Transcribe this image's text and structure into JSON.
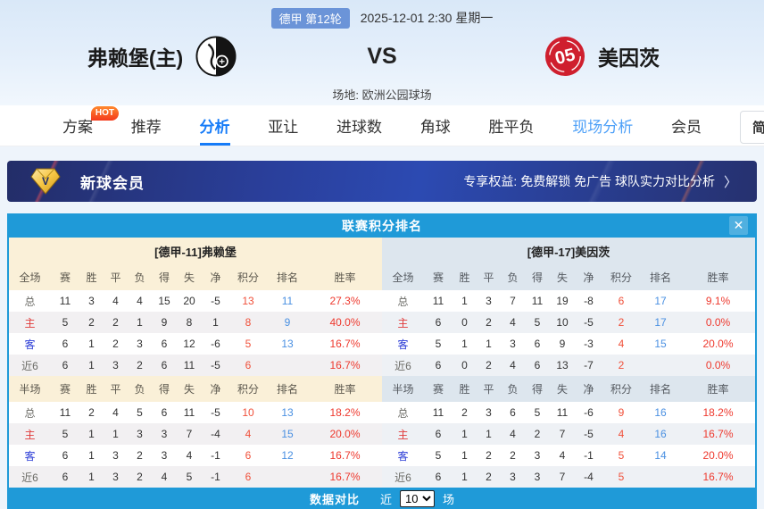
{
  "header": {
    "league_badge": "德甲 第12轮",
    "datetime": "2025-12-01 2:30 星期一",
    "home_team": "弗赖堡(主)",
    "vs": "VS",
    "away_team": "美因茨",
    "away_logo_text": "05",
    "venue": "场地: 欧洲公园球场"
  },
  "nav": {
    "tabs": [
      {
        "label": "方案",
        "badge": "HOT"
      },
      {
        "label": "推荐"
      },
      {
        "label": "分析",
        "active": true
      },
      {
        "label": "亚让"
      },
      {
        "label": "进球数"
      },
      {
        "label": "角球"
      },
      {
        "label": "胜平负"
      },
      {
        "label": "现场分析",
        "highlight": true
      },
      {
        "label": "会员"
      }
    ],
    "lang_button": "简"
  },
  "banner": {
    "icon_letter": "V",
    "title": "新球会员",
    "benefits": "专享权益: 免费解锁 免广告 球队实力对比分析",
    "arrow": "〉"
  },
  "standings": {
    "title": "联赛积分排名",
    "close_icon": "✕",
    "columns_full": [
      "全场",
      "赛",
      "胜",
      "平",
      "负",
      "得",
      "失",
      "净",
      "积分",
      "排名",
      "胜率"
    ],
    "columns_half": [
      "半场",
      "赛",
      "胜",
      "平",
      "负",
      "得",
      "失",
      "净",
      "积分",
      "排名",
      "胜率"
    ],
    "teams": [
      {
        "name": "[德甲-11]弗赖堡",
        "full": [
          {
            "label": "总",
            "cells": [
              "11",
              "3",
              "4",
              "4",
              "15",
              "20",
              "-5",
              "13",
              "11",
              "27.3%"
            ]
          },
          {
            "label": "主",
            "cells": [
              "5",
              "2",
              "2",
              "1",
              "9",
              "8",
              "1",
              "8",
              "9",
              "40.0%"
            ]
          },
          {
            "label": "客",
            "cells": [
              "6",
              "1",
              "2",
              "3",
              "6",
              "12",
              "-6",
              "5",
              "13",
              "16.7%"
            ]
          },
          {
            "label": "近6",
            "cells": [
              "6",
              "1",
              "3",
              "2",
              "6",
              "11",
              "-5",
              "6",
              "",
              "16.7%"
            ]
          }
        ],
        "half": [
          {
            "label": "总",
            "cells": [
              "11",
              "2",
              "4",
              "5",
              "6",
              "11",
              "-5",
              "10",
              "13",
              "18.2%"
            ]
          },
          {
            "label": "主",
            "cells": [
              "5",
              "1",
              "1",
              "3",
              "3",
              "7",
              "-4",
              "4",
              "15",
              "20.0%"
            ]
          },
          {
            "label": "客",
            "cells": [
              "6",
              "1",
              "3",
              "2",
              "3",
              "4",
              "-1",
              "6",
              "12",
              "16.7%"
            ]
          },
          {
            "label": "近6",
            "cells": [
              "6",
              "1",
              "3",
              "2",
              "4",
              "5",
              "-1",
              "6",
              "",
              "16.7%"
            ]
          }
        ]
      },
      {
        "name": "[德甲-17]美因茨",
        "full": [
          {
            "label": "总",
            "cells": [
              "11",
              "1",
              "3",
              "7",
              "11",
              "19",
              "-8",
              "6",
              "17",
              "9.1%"
            ]
          },
          {
            "label": "主",
            "cells": [
              "6",
              "0",
              "2",
              "4",
              "5",
              "10",
              "-5",
              "2",
              "17",
              "0.0%"
            ]
          },
          {
            "label": "客",
            "cells": [
              "5",
              "1",
              "1",
              "3",
              "6",
              "9",
              "-3",
              "4",
              "15",
              "20.0%"
            ]
          },
          {
            "label": "近6",
            "cells": [
              "6",
              "0",
              "2",
              "4",
              "6",
              "13",
              "-7",
              "2",
              "",
              "0.0%"
            ]
          }
        ],
        "half": [
          {
            "label": "总",
            "cells": [
              "11",
              "2",
              "3",
              "6",
              "5",
              "11",
              "-6",
              "9",
              "16",
              "18.2%"
            ]
          },
          {
            "label": "主",
            "cells": [
              "6",
              "1",
              "1",
              "4",
              "2",
              "7",
              "-5",
              "4",
              "16",
              "16.7%"
            ]
          },
          {
            "label": "客",
            "cells": [
              "5",
              "1",
              "2",
              "2",
              "3",
              "4",
              "-1",
              "5",
              "14",
              "20.0%"
            ]
          },
          {
            "label": "近6",
            "cells": [
              "6",
              "1",
              "2",
              "3",
              "3",
              "7",
              "-4",
              "5",
              "",
              "16.7%"
            ]
          }
        ]
      }
    ]
  },
  "footer": {
    "title": "数据对比",
    "near_label": "近",
    "select_value": "10",
    "unit_label": "场"
  },
  "colors": {
    "panel_blue": "#1f9ad8",
    "active_tab_blue": "#157bf8",
    "points_red": "#f0503a",
    "rank_blue": "#4a90e2",
    "home_red": "#e03b3b",
    "away_blue": "#2b3cd6",
    "banner_navy": "#2a3f9b",
    "hot_orange": "#f5431c",
    "left_head_cream": "#faf0d8",
    "right_head_gray": "#dde6ee"
  }
}
